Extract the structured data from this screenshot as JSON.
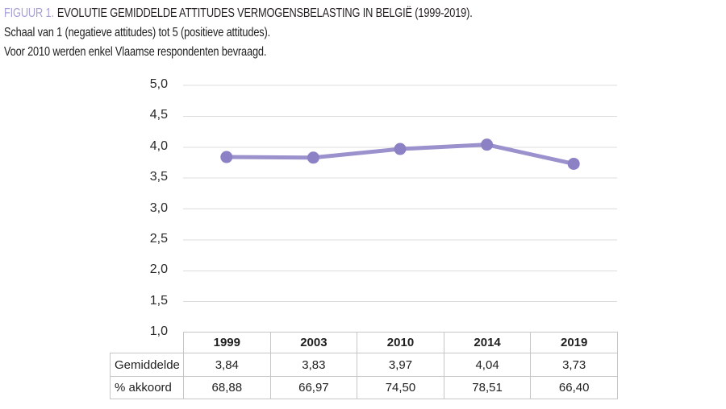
{
  "figure": {
    "label": "FIGUUR 1.",
    "title": "EVOLUTIE GEMIDDELDE ATTITUDES VERMOGENSBELASTING IN BELGIË (1999-2019).",
    "subtitle_scale": "Schaal van 1 (negatieve attitudes) tot 5 (positieve attitudes).",
    "subtitle_note": "Voor 2010 werden enkel Vlaamse respondenten bevraagd."
  },
  "colors": {
    "title_purple": "#a5a0d6",
    "line_purple": "#9a91cd",
    "dot_purple": "#8b81c4",
    "gridline": "#dcdcdc",
    "table_border": "#c6c6c6",
    "text_dark": "#1f1f1f"
  },
  "chart_data": {
    "type": "line",
    "title": "Evolutie gemiddelde attitudes vermogensbelasting in België (1999-2019)",
    "categories": [
      "1999",
      "2003",
      "2010",
      "2014",
      "2019"
    ],
    "series": [
      {
        "name": "Gemiddelde",
        "values": [
          3.84,
          3.83,
          3.97,
          4.04,
          3.73
        ]
      }
    ],
    "xlabel": "",
    "ylabel": "",
    "ylim": [
      1.0,
      5.0
    ],
    "ytick_step": 0.5,
    "ytick_labels": [
      "5,0",
      "4,5",
      "4,0",
      "3,5",
      "3,0",
      "2,5",
      "2,0",
      "1,5",
      "1,0"
    ],
    "grid": true,
    "legend": "none"
  },
  "table": {
    "columns": [
      "",
      "1999",
      "2003",
      "2010",
      "2014",
      "2019"
    ],
    "rows": [
      {
        "label": "Gemiddelde",
        "values": [
          "3,84",
          "3,83",
          "3,97",
          "4,04",
          "3,73"
        ]
      },
      {
        "label": "% akkoord",
        "values": [
          "68,88",
          "66,97",
          "74,50",
          "78,51",
          "66,40"
        ]
      }
    ]
  }
}
